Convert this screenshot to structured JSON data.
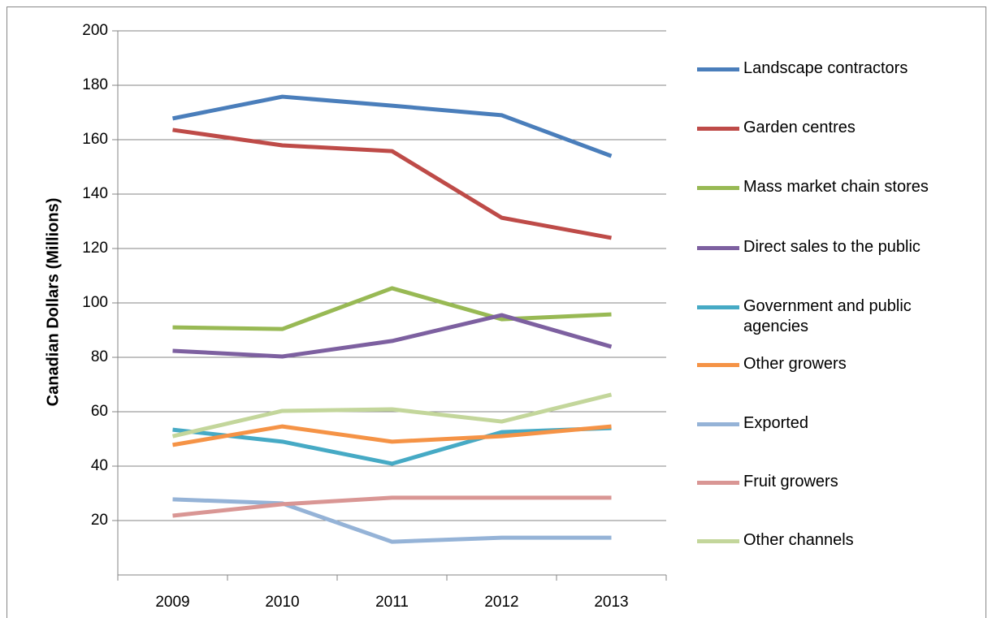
{
  "chart_data": {
    "type": "line",
    "y_label": "Canadian Dollars (Millions)",
    "categories": [
      "2009",
      "2010",
      "2011",
      "2012",
      "2013"
    ],
    "ylim": [
      0,
      200
    ],
    "yticks": [
      20,
      40,
      60,
      80,
      100,
      120,
      140,
      160,
      180,
      200
    ],
    "grid": true,
    "series": [
      {
        "name": "Landscape contractors",
        "color": "#4a7ebb",
        "values": [
          167.8,
          175.8,
          172.5,
          169,
          154
        ]
      },
      {
        "name": "Garden centres",
        "color": "#be4b48",
        "values": [
          163.6,
          157.9,
          155.8,
          131.3,
          123.9
        ]
      },
      {
        "name": "Mass market chain stores",
        "color": "#98b954",
        "values": [
          91,
          90.4,
          105.4,
          94,
          95.8
        ]
      },
      {
        "name": "Direct sales to the public",
        "color": "#7d60a0",
        "values": [
          82.4,
          80.3,
          86,
          95.5,
          83.9
        ]
      },
      {
        "name": "Government and public agencies",
        "color": "#46aac5",
        "values": [
          53.4,
          49,
          40.9,
          52.5,
          54
        ]
      },
      {
        "name": "Other growers",
        "color": "#f59346",
        "values": [
          47.8,
          54.6,
          49,
          51,
          54.6
        ]
      },
      {
        "name": "Exported",
        "color": "#95b3d7",
        "values": [
          27.8,
          26.3,
          12.2,
          13.7,
          13.7
        ]
      },
      {
        "name": "Fruit growers",
        "color": "#d99694",
        "values": [
          21.8,
          26,
          28.4,
          28.4,
          28.4
        ]
      },
      {
        "name": "Other channels",
        "color": "#c3d69b",
        "values": [
          51,
          60.3,
          60.9,
          56.4,
          66.3
        ]
      }
    ]
  }
}
